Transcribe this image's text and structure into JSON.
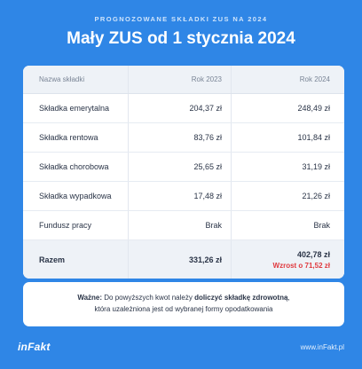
{
  "kicker": "PROGNOZOWANE SKŁADKI ZUS NA 2024",
  "title": "Mały ZUS od 1 stycznia 2024",
  "table": {
    "headers": [
      "Nazwa składki",
      "Rok 2023",
      "Rok 2024"
    ],
    "rows": [
      {
        "name": "Składka emerytalna",
        "y2023": "204,37 zł",
        "y2024": "248,49 zł"
      },
      {
        "name": "Składka rentowa",
        "y2023": "83,76 zł",
        "y2024": "101,84 zł"
      },
      {
        "name": "Składka chorobowa",
        "y2023": "25,65 zł",
        "y2024": "31,19 zł"
      },
      {
        "name": "Składka wypadkowa",
        "y2023": "17,48 zł",
        "y2024": "21,26 zł"
      },
      {
        "name": "Fundusz pracy",
        "y2023": "Brak",
        "y2024": "Brak"
      }
    ],
    "total": {
      "name": "Razem",
      "y2023": "331,26 zł",
      "y2024": "402,78 zł",
      "increase": "Wzrost o 71,52 zł"
    }
  },
  "note": {
    "bold_prefix": "Ważne:",
    "text_1": " Do powyższych kwot należy ",
    "bold_mid": "doliczyć składkę zdrowotną",
    "text_2": ",",
    "line_2": "która uzależniona jest od wybranej formy opodatkowania"
  },
  "footer": {
    "logo": "inFakt",
    "site": "www.inFakt.pl"
  },
  "colors": {
    "background": "#2f86e6",
    "increase": "#e0393e"
  }
}
